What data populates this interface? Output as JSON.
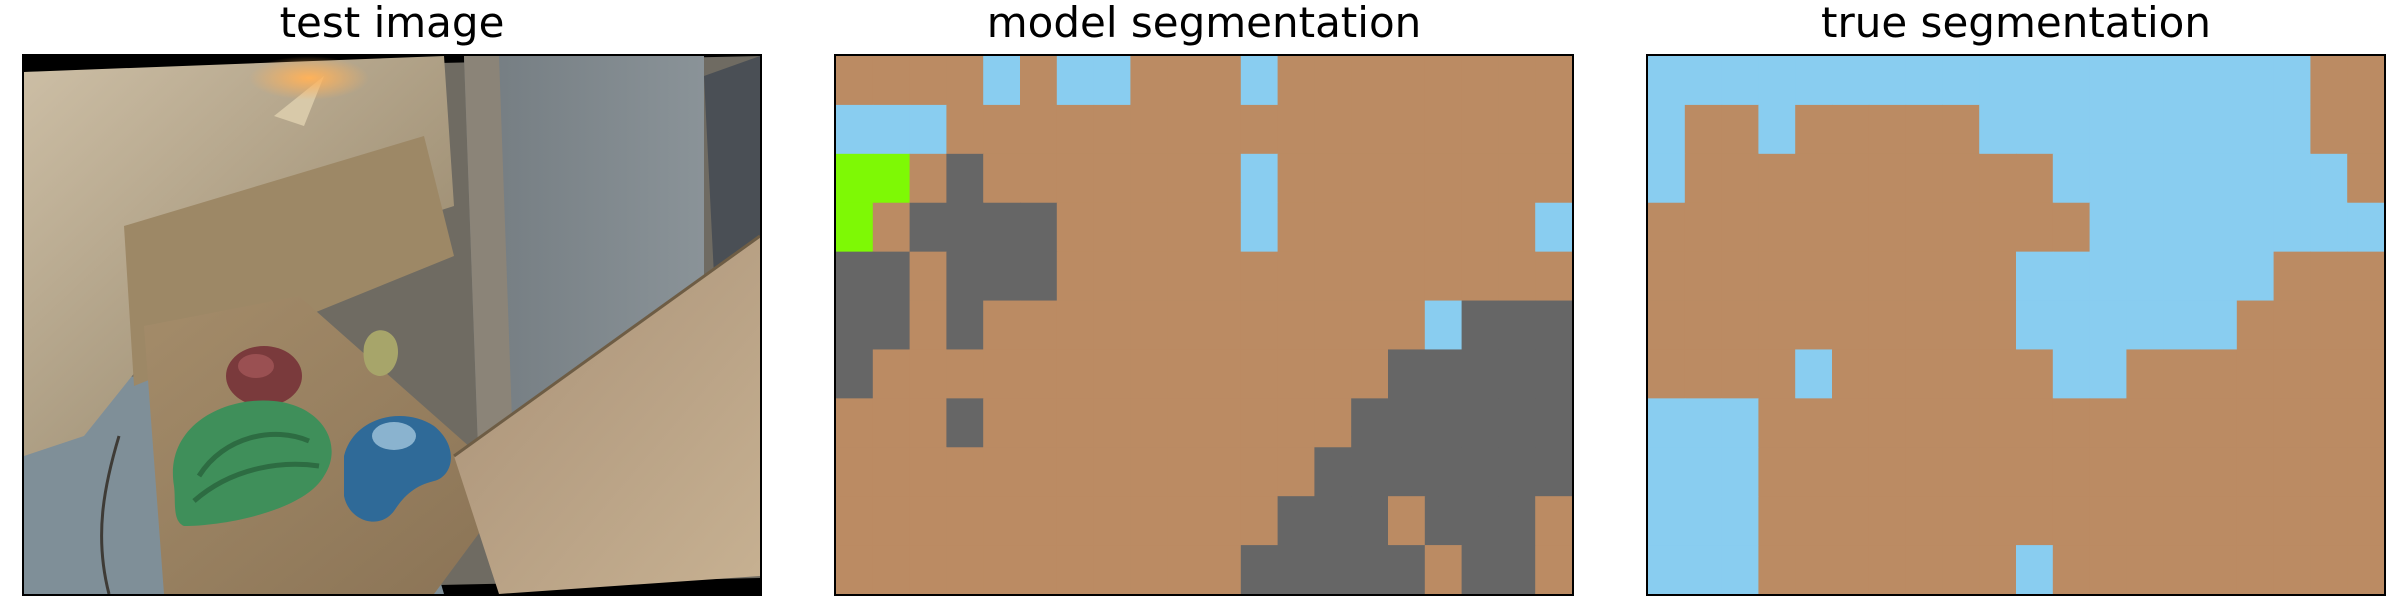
{
  "figure": {
    "panels": [
      {
        "title": "test image"
      },
      {
        "title": "model segmentation"
      },
      {
        "title": "true segmentation"
      }
    ]
  },
  "colors": {
    "tan": "#bb8b63",
    "sky": "#89cdf0",
    "gray": "#666666",
    "green": "#7ef905",
    "black": "#000000"
  },
  "model_segmentation": {
    "cols": 20,
    "rows": 11,
    "legend": "T=tan, S=sky, G=gray, L=green",
    "grid": [
      "TTTTSTSSTTTSTTTTTTTT",
      "SSSTTTTTTTTTTTTTTTTT",
      "LLTGTTTTTTTSTTTTTTTT",
      "LTGGGGTTTTTSTTTTTTTS",
      "GGTGGGTTTTTTTTTTTTTT",
      "GGTGTTTTTTTTTTTTSGGG",
      "GTTTTTTTTTTTTTTGGGGG",
      "TTTGTTTTTTTTTTGGGGGG",
      "TTTTTTTTTTTTTGGGGGGG",
      "TTTTTTTTTTTTGGGTGGGT",
      "TTTTTTTTTTTGGGGGTGGT"
    ]
  },
  "true_segmentation": {
    "cols": 20,
    "rows": 11,
    "legend": "T=tan, S=sky",
    "grid": [
      "SSSSSSSSSSSSSSSSSSTT",
      "STTSTTTTTSSSSSSSSSTT",
      "STTTTTTTTTTSSSSSSSST",
      "TTTTTTTTTTTTSSSSSSSS",
      "TTTTTTTTTTSSSSSSSTTT",
      "TTTTTTTTTTSSSSSSTTTT",
      "TTTTSTTTTTTSSTTTTTTT",
      "SSSTTTTTTTTTTTTTTTTT",
      "SSSTTTTTTTTTTTTTTTTT",
      "SSSTTTTTTTTTTTTTTTTT",
      "SSSTTTTTTTSTTTTTTTTT"
    ]
  }
}
